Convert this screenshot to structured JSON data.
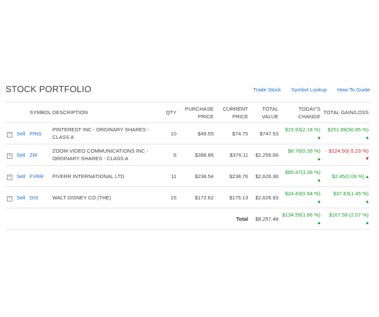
{
  "portfolio": {
    "title": "STOCK PORTFOLIO",
    "links": [
      "Trade Stock",
      "Symbol Lookup",
      "How-To Guide"
    ]
  },
  "columns": {
    "symbol": "SYMBOL",
    "description": "DESCRIPTION",
    "qty": "QTY",
    "purchase_price": "PURCHASE PRICE",
    "current_price": "CURRENT PRICE",
    "total_value": "TOTAL VALUE",
    "todays_change": "TODAY'S CHANGE",
    "total_gain_loss": "TOTAL GAIN/LOSS"
  },
  "rows": [
    {
      "expand": "+",
      "sell": "Sell",
      "symbol": "PINS",
      "description": "PINTEREST INC - ORDINARY SHARES - CLASS A",
      "qty": "10",
      "purchase_price": "$49.55",
      "current_price": "$74.75",
      "total_value": "$747.53",
      "todays_change": "$15.93(2.18 %)",
      "total_gain_loss": "$251.99(50.85 %)",
      "todays_dir": "up",
      "gain_dir": "up"
    },
    {
      "expand": "+",
      "sell": "Sell",
      "symbol": "ZM",
      "description": "ZOOM VIDEO COMMUNICATIONS INC - ORDINARY SHARES - CLASS A",
      "qty": "6",
      "purchase_price": "$396.86",
      "current_price": "$376.11",
      "total_value": "$2,256.66",
      "todays_change": "$8.76(0.39 %)",
      "total_gain_loss": "- $124.50(-5.23 %)",
      "todays_dir": "up",
      "gain_dir": "down"
    },
    {
      "expand": "+",
      "sell": "Sell",
      "symbol": "FVRR",
      "description": "FIVERR INTERNATIONAL LTD",
      "qty": "11",
      "purchase_price": "$238.54",
      "current_price": "$238.76",
      "total_value": "$2,626.36",
      "todays_change": "$85.47(3.36 %)",
      "total_gain_loss": "$2.45(0.09 %)",
      "todays_dir": "up",
      "gain_dir": "up"
    },
    {
      "expand": "+",
      "sell": "Sell",
      "symbol": "DIS",
      "description": "WALT DISNEY CO (THE)",
      "qty": "15",
      "purchase_price": "$172.62",
      "current_price": "$175.13",
      "total_value": "$2,626.93",
      "todays_change": "$24.43(0.94 %)",
      "total_gain_loss": "$37.63(1.45 %)",
      "todays_dir": "up",
      "gain_dir": "up"
    }
  ],
  "totals": {
    "label": "Total",
    "total_value": "$8,257.48",
    "todays_change": "$134.59(1.66 %)",
    "total_gain_loss": "$167.58 (2.07 %)"
  },
  "colors": {
    "link": "#1a6fc6",
    "positive": "#1e9e2e",
    "negative": "#cc2222"
  }
}
